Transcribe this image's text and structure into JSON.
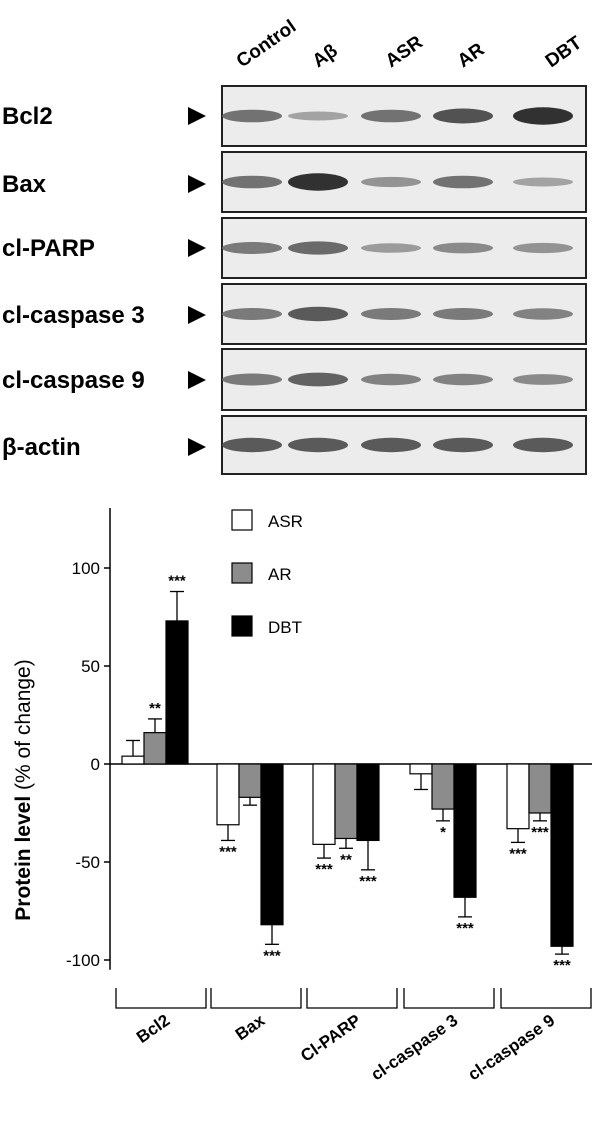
{
  "blot": {
    "lanes": [
      "Control",
      "Aβ",
      "ASR",
      "AR",
      "DBT"
    ],
    "rows": [
      {
        "label": "Bcl2",
        "intensities": [
          0.55,
          0.25,
          0.55,
          0.75,
          0.95
        ]
      },
      {
        "label": "Bax",
        "intensities": [
          0.55,
          0.95,
          0.35,
          0.55,
          0.25
        ]
      },
      {
        "label": "cl-PARP",
        "intensities": [
          0.5,
          0.6,
          0.3,
          0.4,
          0.35
        ]
      },
      {
        "label": "cl-caspase 3",
        "intensities": [
          0.5,
          0.7,
          0.5,
          0.5,
          0.45
        ]
      },
      {
        "label": "cl-caspase 9",
        "intensities": [
          0.5,
          0.65,
          0.45,
          0.45,
          0.4
        ]
      },
      {
        "label": "β-actin",
        "intensities": [
          0.7,
          0.7,
          0.7,
          0.7,
          0.7
        ]
      }
    ]
  },
  "chart_data": {
    "type": "bar",
    "ylabel_bold": "Protein level",
    "ylabel_rest": "(% of change)",
    "ylim": [
      -100,
      130
    ],
    "yticks": [
      100,
      50,
      0,
      -50,
      -100
    ],
    "ytick_labels": [
      "100",
      "50",
      "0",
      "-50",
      "-100"
    ],
    "categories": [
      "Bcl2",
      "Bax",
      "Cl-PARP",
      "cl-caspase 3",
      "cl-caspase 9"
    ],
    "legend_position": "top-right",
    "series": [
      {
        "name": "ASR",
        "color": "#ffffff",
        "values": [
          4,
          -31,
          -41,
          -5,
          -33
        ],
        "errors": [
          8,
          8,
          7,
          8,
          7
        ],
        "significance": [
          "",
          "***",
          "***",
          "",
          "***"
        ]
      },
      {
        "name": "AR",
        "color": "#8c8c8c",
        "values": [
          16,
          -17,
          -38,
          -23,
          -25
        ],
        "errors": [
          7,
          4,
          5,
          6,
          4
        ],
        "significance": [
          "**",
          "",
          "**",
          "*",
          "***"
        ]
      },
      {
        "name": "DBT",
        "color": "#000000",
        "values": [
          73,
          -82,
          -39,
          -68,
          -93
        ],
        "errors": [
          15,
          10,
          15,
          10,
          4
        ],
        "significance": [
          "***",
          "***",
          "***",
          "***",
          "***"
        ]
      }
    ]
  }
}
